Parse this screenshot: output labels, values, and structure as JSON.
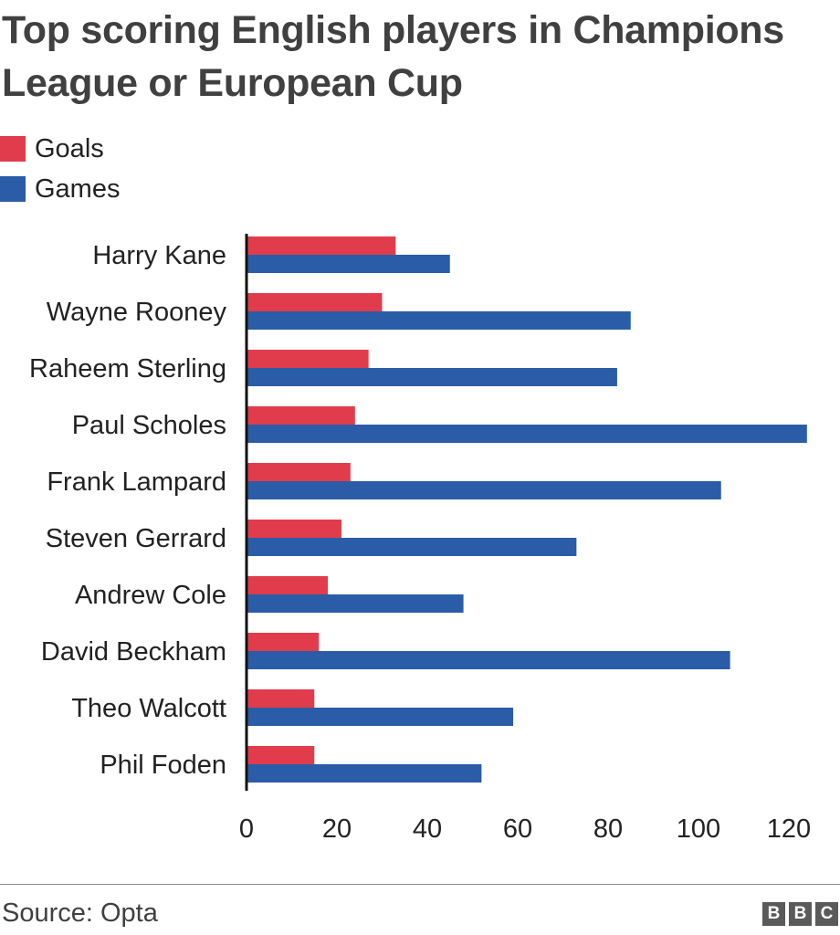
{
  "header": {
    "title": "Top scoring English players in Champions League or European Cup"
  },
  "legend": [
    {
      "label": "Goals",
      "color": "#e13c4b"
    },
    {
      "label": "Games",
      "color": "#2a5ca8"
    }
  ],
  "chart_data": {
    "type": "bar",
    "orientation": "horizontal",
    "categories": [
      "Harry Kane",
      "Wayne Rooney",
      "Raheem Sterling",
      "Paul Scholes",
      "Frank Lampard",
      "Steven Gerrard",
      "Andrew Cole",
      "David Beckham",
      "Theo Walcott",
      "Phil Foden"
    ],
    "series": [
      {
        "name": "Goals",
        "color": "#e13c4b",
        "values": [
          33,
          30,
          27,
          24,
          23,
          21,
          18,
          16,
          15,
          15
        ]
      },
      {
        "name": "Games",
        "color": "#2a5ca8",
        "values": [
          45,
          85,
          82,
          124,
          105,
          73,
          48,
          107,
          59,
          52
        ]
      }
    ],
    "xlim": [
      0,
      125
    ],
    "xticks": [
      0,
      20,
      40,
      60,
      80,
      100,
      120
    ],
    "grid": false,
    "legend_position": "top-left",
    "title": "Top scoring English players in Champions League or European Cup"
  },
  "footer": {
    "source": "Source: Opta",
    "logo_letters": [
      "B",
      "B",
      "C"
    ]
  }
}
